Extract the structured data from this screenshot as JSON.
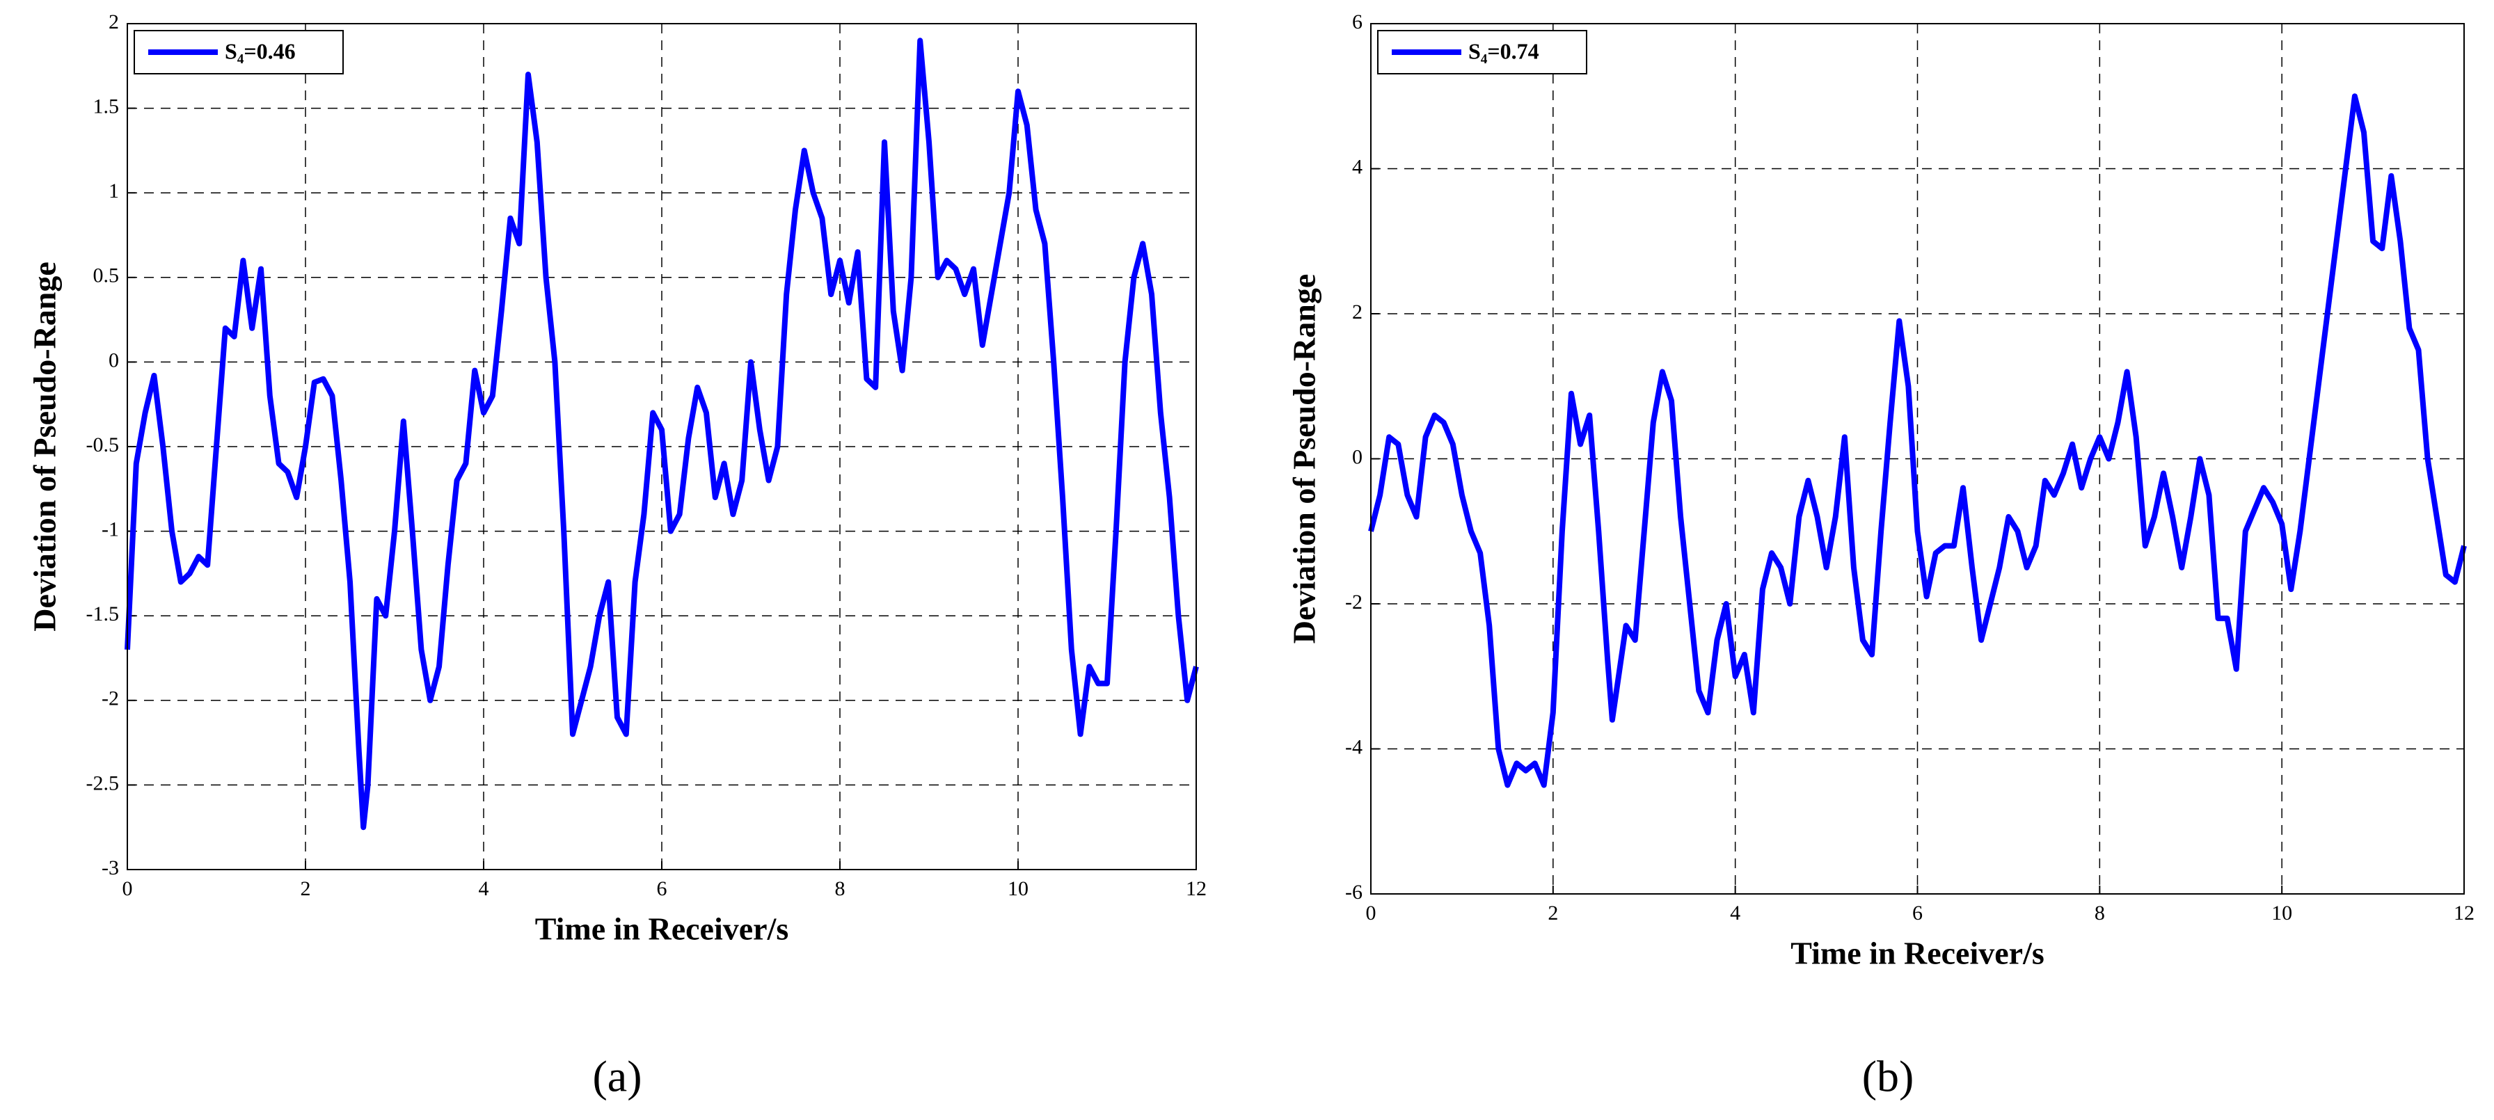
{
  "chart_data": [
    {
      "type": "line",
      "caption": "(a)",
      "xlabel": "Time in Receiver/s",
      "ylabel": "Deviation of Pseudo-Range",
      "xlim": [
        0,
        12
      ],
      "xticks": [
        0,
        2,
        4,
        6,
        8,
        10,
        12
      ],
      "ylim": [
        -3,
        2
      ],
      "yticks": [
        -3,
        -2.5,
        -2,
        -1.5,
        -1,
        -0.5,
        0,
        0.5,
        1,
        1.5,
        2
      ],
      "grid": true,
      "legend": "upper left",
      "x": [
        0,
        0.1,
        0.2,
        0.3,
        0.4,
        0.5,
        0.6,
        0.7,
        0.8,
        0.9,
        1.0,
        1.1,
        1.2,
        1.3,
        1.4,
        1.5,
        1.6,
        1.7,
        1.8,
        1.9,
        2.0,
        2.1,
        2.2,
        2.3,
        2.4,
        2.5,
        2.6,
        2.65,
        2.7,
        2.8,
        2.9,
        3.0,
        3.1,
        3.2,
        3.3,
        3.4,
        3.5,
        3.6,
        3.7,
        3.8,
        3.9,
        4.0,
        4.1,
        4.2,
        4.3,
        4.4,
        4.5,
        4.6,
        4.7,
        4.8,
        4.9,
        5.0,
        5.1,
        5.2,
        5.3,
        5.4,
        5.5,
        5.6,
        5.7,
        5.8,
        5.9,
        6.0,
        6.1,
        6.2,
        6.3,
        6.4,
        6.5,
        6.6,
        6.7,
        6.8,
        6.9,
        7.0,
        7.1,
        7.2,
        7.3,
        7.4,
        7.5,
        7.6,
        7.7,
        7.8,
        7.9,
        8.0,
        8.1,
        8.2,
        8.3,
        8.4,
        8.5,
        8.6,
        8.7,
        8.8,
        8.9,
        9.0,
        9.1,
        9.2,
        9.3,
        9.4,
        9.5,
        9.6,
        9.7,
        9.8,
        9.9,
        10.0,
        10.1,
        10.2,
        10.3,
        10.4,
        10.5,
        10.6,
        10.7,
        10.8,
        10.9,
        11.0,
        11.1,
        11.2,
        11.3,
        11.4,
        11.5,
        11.6,
        11.7,
        11.8,
        11.9,
        12.0
      ],
      "series": [
        {
          "name": "S₄=0.46",
          "color": "#0000ff",
          "values": [
            -1.7,
            -0.6,
            -0.3,
            -0.08,
            -0.5,
            -1.0,
            -1.3,
            -1.25,
            -1.15,
            -1.2,
            -0.5,
            0.2,
            0.15,
            0.6,
            0.2,
            0.55,
            -0.2,
            -0.6,
            -0.65,
            -0.8,
            -0.5,
            -0.12,
            -0.1,
            -0.2,
            -0.7,
            -1.3,
            -2.3,
            -2.75,
            -2.5,
            -1.4,
            -1.5,
            -1.0,
            -0.35,
            -1.0,
            -1.7,
            -2.0,
            -1.8,
            -1.2,
            -0.7,
            -0.6,
            -0.05,
            -0.3,
            -0.2,
            0.3,
            0.85,
            0.7,
            1.7,
            1.3,
            0.5,
            0.0,
            -1.0,
            -2.2,
            -2.0,
            -1.8,
            -1.5,
            -1.3,
            -2.1,
            -2.2,
            -1.3,
            -0.9,
            -0.3,
            -0.4,
            -1.0,
            -0.9,
            -0.45,
            -0.15,
            -0.3,
            -0.8,
            -0.6,
            -0.9,
            -0.7,
            0.0,
            -0.4,
            -0.7,
            -0.5,
            0.4,
            0.9,
            1.25,
            1.0,
            0.85,
            0.4,
            0.6,
            0.35,
            0.65,
            -0.1,
            -0.15,
            1.3,
            0.3,
            -0.05,
            0.5,
            1.9,
            1.3,
            0.5,
            0.6,
            0.55,
            0.4,
            0.55,
            0.1,
            0.4,
            0.7,
            1.0,
            1.6,
            1.4,
            0.9,
            0.7,
            0.0,
            -0.8,
            -1.7,
            -2.2,
            -1.8,
            -1.9,
            -1.9,
            -1.0,
            0.0,
            0.5,
            0.7,
            0.4,
            -0.3,
            -0.8,
            -1.5,
            -2.0,
            -1.8
          ]
        }
      ]
    },
    {
      "type": "line",
      "caption": "(b)",
      "xlabel": "Time in Receiver/s",
      "ylabel": "Deviation of Pseudo-Range",
      "xlim": [
        0,
        12
      ],
      "xticks": [
        0,
        2,
        4,
        6,
        8,
        10,
        12
      ],
      "ylim": [
        -6,
        6
      ],
      "yticks": [
        -6,
        -4,
        -2,
        0,
        2,
        4,
        6
      ],
      "grid": true,
      "legend": "upper left",
      "x": [
        0,
        0.1,
        0.2,
        0.3,
        0.4,
        0.5,
        0.6,
        0.7,
        0.8,
        0.9,
        1.0,
        1.1,
        1.2,
        1.3,
        1.4,
        1.5,
        1.6,
        1.7,
        1.8,
        1.9,
        2.0,
        2.1,
        2.2,
        2.3,
        2.4,
        2.5,
        2.6,
        2.65,
        2.8,
        2.9,
        3.0,
        3.1,
        3.2,
        3.3,
        3.4,
        3.5,
        3.6,
        3.7,
        3.8,
        3.9,
        4.0,
        4.1,
        4.2,
        4.3,
        4.4,
        4.5,
        4.6,
        4.7,
        4.8,
        4.9,
        5.0,
        5.1,
        5.2,
        5.3,
        5.4,
        5.5,
        5.6,
        5.7,
        5.8,
        5.9,
        6.0,
        6.1,
        6.2,
        6.3,
        6.4,
        6.5,
        6.6,
        6.7,
        6.8,
        6.9,
        7.0,
        7.1,
        7.2,
        7.3,
        7.4,
        7.5,
        7.6,
        7.7,
        7.8,
        7.9,
        8.0,
        8.1,
        8.2,
        8.3,
        8.4,
        8.5,
        8.6,
        8.7,
        8.8,
        8.9,
        9.0,
        9.1,
        9.2,
        9.3,
        9.4,
        9.5,
        9.6,
        9.7,
        9.8,
        9.9,
        10.0,
        10.1,
        10.2,
        10.3,
        10.4,
        10.5,
        10.6,
        10.7,
        10.8,
        10.9,
        11.0,
        11.1,
        11.2,
        11.3,
        11.4,
        11.5,
        11.6,
        11.7,
        11.8,
        11.9,
        12.0
      ],
      "series": [
        {
          "name": "S₄=0.74",
          "color": "#0000ff",
          "values": [
            -1.0,
            -0.5,
            0.3,
            0.2,
            -0.5,
            -0.8,
            0.3,
            0.6,
            0.5,
            0.2,
            -0.5,
            -1.0,
            -1.3,
            -2.3,
            -4.0,
            -4.5,
            -4.2,
            -4.3,
            -4.2,
            -4.5,
            -3.5,
            -1.0,
            0.9,
            0.2,
            0.6,
            -1.0,
            -2.8,
            -3.6,
            -2.3,
            -2.5,
            -1.0,
            0.5,
            1.2,
            0.8,
            -0.8,
            -2.0,
            -3.2,
            -3.5,
            -2.5,
            -2.0,
            -3.0,
            -2.7,
            -3.5,
            -1.8,
            -1.3,
            -1.5,
            -2.0,
            -0.8,
            -0.3,
            -0.8,
            -1.5,
            -0.8,
            0.3,
            -1.5,
            -2.5,
            -2.7,
            -1.0,
            0.5,
            1.9,
            1.0,
            -1.0,
            -1.9,
            -1.3,
            -1.2,
            -1.2,
            -0.4,
            -1.5,
            -2.5,
            -2.0,
            -1.5,
            -0.8,
            -1.0,
            -1.5,
            -1.2,
            -0.3,
            -0.5,
            -0.2,
            0.2,
            -0.4,
            0.0,
            0.3,
            0.0,
            0.5,
            1.2,
            0.3,
            -1.2,
            -0.8,
            -0.2,
            -0.8,
            -1.5,
            -0.8,
            0.0,
            -0.5,
            -2.2,
            -2.2,
            -2.9,
            -1.0,
            -0.7,
            -0.4,
            -0.6,
            -0.9,
            -1.8,
            -1.0,
            0.0,
            1.0,
            2.0,
            3.0,
            4.0,
            5.0,
            4.5,
            3.0,
            2.9,
            3.9,
            3.0,
            1.8,
            1.5,
            0.0,
            -0.8,
            -1.6,
            -1.7,
            -1.2
          ]
        }
      ]
    }
  ]
}
